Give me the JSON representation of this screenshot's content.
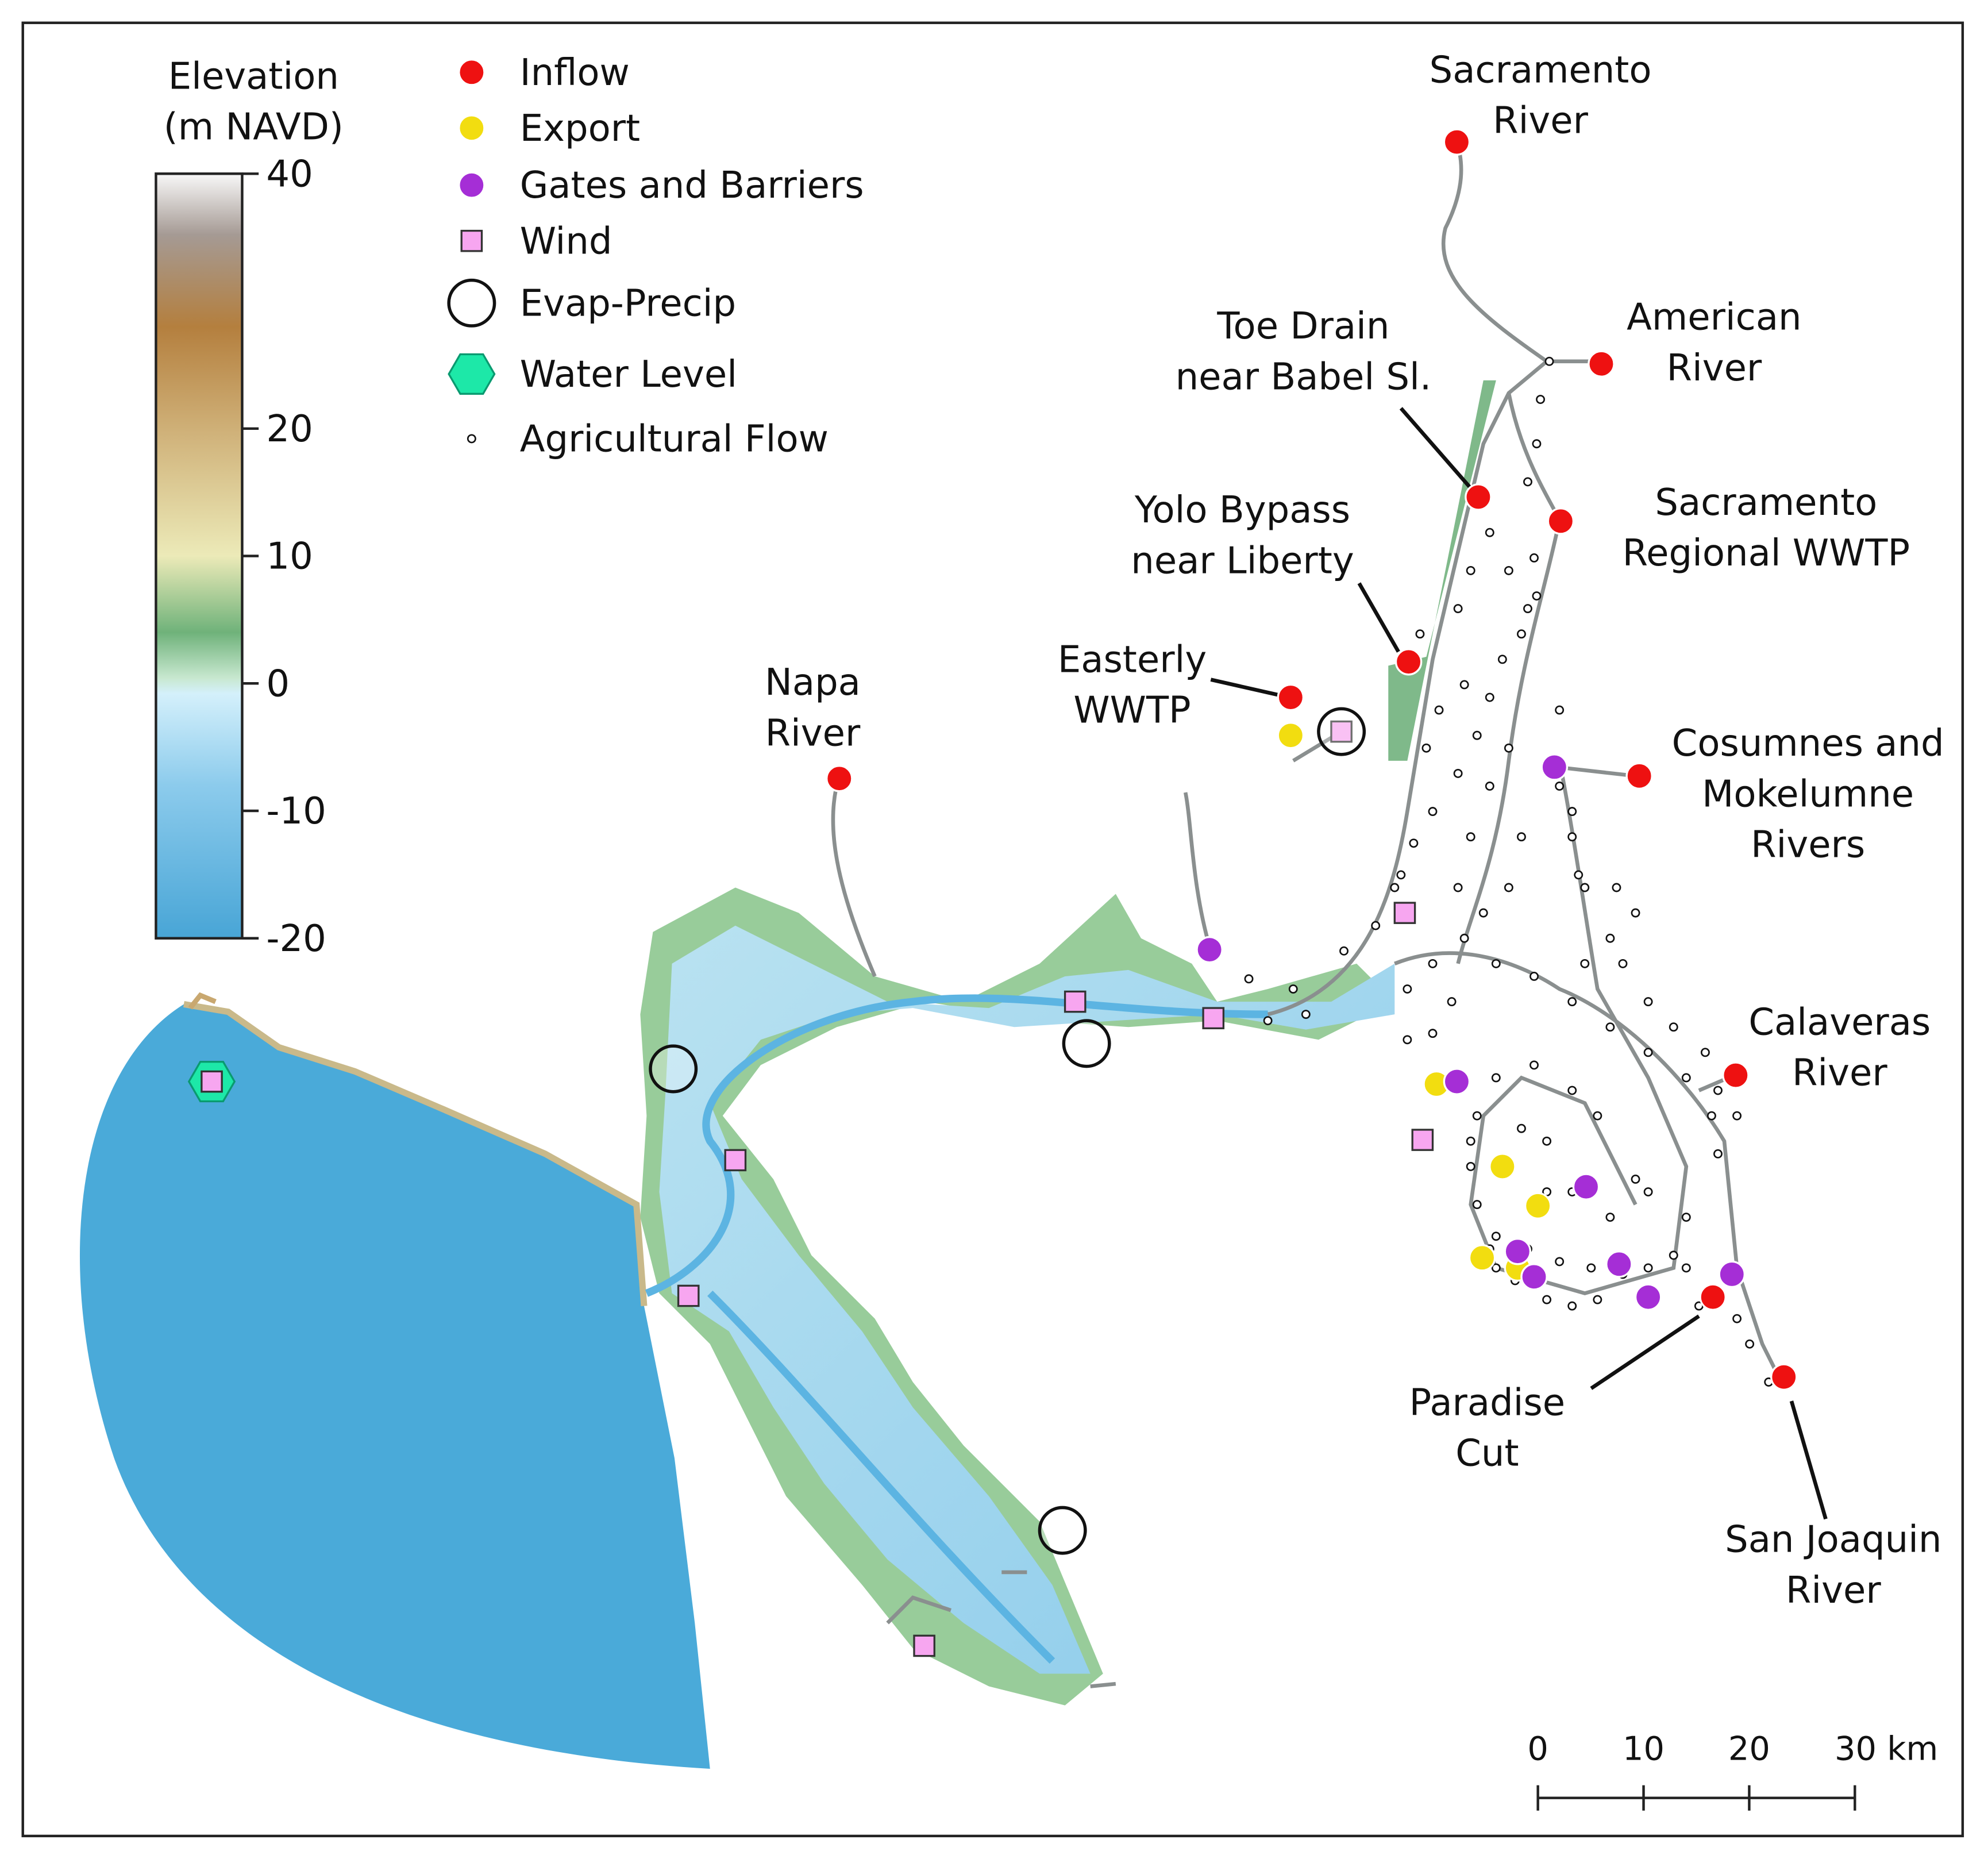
{
  "colorbar": {
    "title": [
      "Elevation",
      "(m NAVD)"
    ],
    "lim": [
      -20,
      40
    ],
    "ticks": [
      40,
      20,
      10,
      0,
      -10,
      -20
    ]
  },
  "legend": {
    "items": [
      "Inflow",
      "Export",
      "Gates and Barriers",
      "Wind",
      "Evap-Precip",
      "Water Level",
      "Agricultural Flow"
    ]
  },
  "places": [
    {
      "lines": [
        "Sacramento",
        "River"
      ]
    },
    {
      "lines": [
        "American",
        "River"
      ]
    },
    {
      "lines": [
        "Toe Drain",
        "near Babel Sl."
      ]
    },
    {
      "lines": [
        "Sacramento",
        "Regional WWTP"
      ]
    },
    {
      "lines": [
        "Yolo Bypass",
        "near Liberty"
      ]
    },
    {
      "lines": [
        "Easterly",
        "WWTP"
      ]
    },
    {
      "lines": [
        "Napa",
        "River"
      ]
    },
    {
      "lines": [
        "Cosumnes and",
        "Mokelumne",
        "Rivers"
      ]
    },
    {
      "lines": [
        "Calaveras",
        "River"
      ]
    },
    {
      "lines": [
        "Paradise",
        "Cut"
      ]
    },
    {
      "lines": [
        "San Joaquin",
        "River"
      ]
    }
  ],
  "scale_bar": {
    "lim": [
      0,
      30
    ],
    "ticks": [
      0,
      10,
      20,
      {
        "value": 30,
        "label": "30 km"
      }
    ]
  }
}
